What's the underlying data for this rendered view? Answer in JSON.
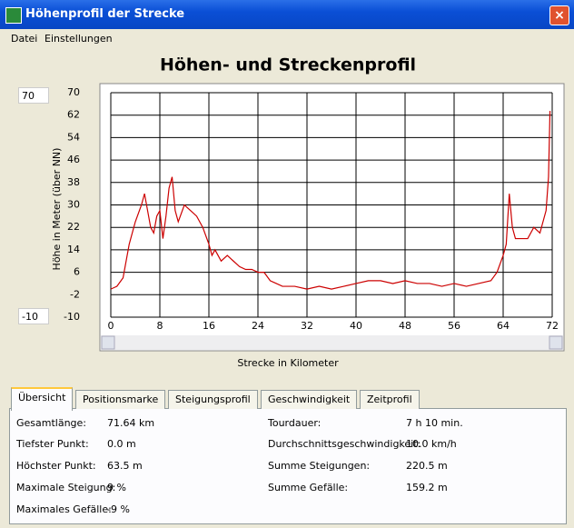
{
  "window": {
    "title": "Höhenprofil der Strecke"
  },
  "menu": [
    "Datei",
    "Einstellungen"
  ],
  "range_inputs": {
    "max": "70",
    "min": "-10"
  },
  "chart_data": {
    "type": "line",
    "title": "Höhen- und Streckenprofil",
    "y_label": "Höhe in Meter (über NN)",
    "x_label": "Strecke in Kilometer",
    "x": [
      0,
      1,
      2,
      3,
      4,
      5,
      5.5,
      6,
      6.5,
      7,
      7.5,
      8,
      8.5,
      9,
      9.5,
      10,
      10.5,
      11,
      12,
      13,
      14,
      15,
      16,
      16.5,
      17,
      18,
      19,
      20,
      21,
      22,
      23,
      24,
      25,
      26,
      27,
      28,
      30,
      32,
      34,
      36,
      38,
      40,
      42,
      44,
      46,
      48,
      50,
      52,
      54,
      56,
      58,
      60,
      62,
      63,
      64,
      64.5,
      65,
      65.5,
      66,
      67,
      68,
      69,
      70,
      70.5,
      71,
      71.4,
      71.64
    ],
    "series": [
      {
        "color": "#cc0000",
        "values": [
          0,
          1,
          4,
          16,
          24,
          30,
          34,
          28,
          22,
          20,
          26,
          28,
          18,
          26,
          36,
          40,
          28,
          24,
          30,
          28,
          26,
          22,
          16,
          12,
          14,
          10,
          12,
          10,
          8,
          7,
          7,
          6,
          6,
          3,
          2,
          1,
          1,
          0,
          1,
          0,
          1,
          2,
          3,
          3,
          2,
          3,
          2,
          2,
          1,
          2,
          1,
          2,
          3,
          6,
          12,
          16,
          34,
          22,
          18,
          18,
          18,
          22,
          20,
          24,
          28,
          40,
          63.5
        ]
      }
    ],
    "xlim": [
      0,
      72
    ],
    "xticks": [
      0,
      8,
      16,
      24,
      32,
      40,
      48,
      56,
      64,
      72
    ],
    "ylim": [
      -10,
      70
    ],
    "yticks": [
      70,
      62,
      54,
      46,
      38,
      30,
      22,
      14,
      6,
      -2,
      -10
    ],
    "grid": true
  },
  "tabs": [
    "Übersicht",
    "Positionsmarke",
    "Steigungsprofil",
    "Geschwindigkeit",
    "Zeitprofil"
  ],
  "stats": {
    "left": [
      [
        "Gesamtlänge:",
        "71.64 km"
      ],
      [
        "Tiefster Punkt:",
        "0.0 m"
      ],
      [
        "Höchster Punkt:",
        "63.5 m"
      ],
      [
        "Maximale Steigung:",
        "9 %"
      ],
      [
        "Maximales Gefälle:",
        "-9 %"
      ]
    ],
    "right": [
      [
        "Tourdauer:",
        "7 h 10 min."
      ],
      [
        "Durchschnittsgeschwindigkeit:",
        "10.0 km/h"
      ],
      [
        "Summe Steigungen:",
        "220.5 m"
      ],
      [
        "Summe Gefälle:",
        "159.2 m"
      ]
    ]
  }
}
